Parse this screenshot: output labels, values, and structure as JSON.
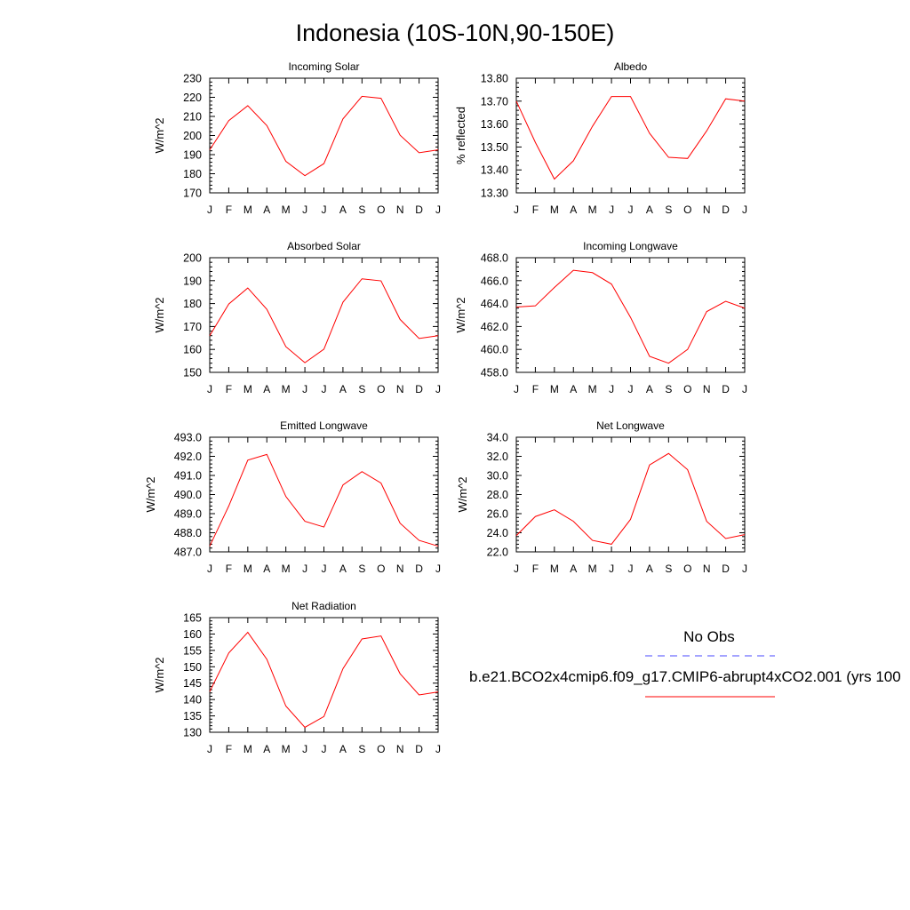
{
  "figure": {
    "title": "Indonesia (10S-10N,90-150E)"
  },
  "legend": {
    "obs_label": "No Obs",
    "obs_color": "#4a4aff",
    "model_label": "b.e21.BCO2x4cmip6.f09_g17.CMIP6-abrupt4xCO2.001 (yrs 100",
    "model_color": "#ff0000"
  },
  "chart_data": [
    {
      "type": "line",
      "title": "Incoming Solar",
      "ylabel": "W/m^2",
      "categories": [
        "J",
        "F",
        "M",
        "A",
        "M",
        "J",
        "J",
        "A",
        "S",
        "O",
        "N",
        "D",
        "J"
      ],
      "ylim": [
        170,
        230
      ],
      "yticks": [
        "170",
        "180",
        "190",
        "200",
        "210",
        "220",
        "230"
      ],
      "series": [
        {
          "name": "b.e21.BCO2x4cmip6.f09_g17.CMIP6-abrupt4xCO2.001",
          "color": "#ff0000",
          "values": [
            192.5,
            207.8,
            215.6,
            205.2,
            186.5,
            179.0,
            185.3,
            208.7,
            220.5,
            219.5,
            200.2,
            191.0,
            192.5
          ]
        }
      ]
    },
    {
      "type": "line",
      "title": "Albedo",
      "ylabel": "% reflected",
      "categories": [
        "J",
        "F",
        "M",
        "A",
        "M",
        "J",
        "J",
        "A",
        "S",
        "O",
        "N",
        "D",
        "J"
      ],
      "ylim": [
        13.3,
        13.8
      ],
      "yticks": [
        "13.30",
        "13.40",
        "13.50",
        "13.60",
        "13.70",
        "13.80"
      ],
      "series": [
        {
          "name": "b.e21.BCO2x4cmip6.f09_g17.CMIP6-abrupt4xCO2.001",
          "color": "#ff0000",
          "values": [
            13.7,
            13.52,
            13.36,
            13.44,
            13.59,
            13.72,
            13.72,
            13.56,
            13.455,
            13.45,
            13.57,
            13.71,
            13.7
          ]
        }
      ]
    },
    {
      "type": "line",
      "title": "Absorbed Solar",
      "ylabel": "W/m^2",
      "categories": [
        "J",
        "F",
        "M",
        "A",
        "M",
        "J",
        "J",
        "A",
        "S",
        "O",
        "N",
        "D",
        "J"
      ],
      "ylim": [
        150,
        200
      ],
      "yticks": [
        "150",
        "160",
        "170",
        "180",
        "190",
        "200"
      ],
      "series": [
        {
          "name": "b.e21.BCO2x4cmip6.f09_g17.CMIP6-abrupt4xCO2.001",
          "color": "#ff0000",
          "values": [
            166.0,
            179.8,
            186.8,
            177.5,
            161.2,
            154.2,
            160.1,
            180.6,
            190.8,
            189.9,
            173.1,
            164.8,
            166.0
          ]
        }
      ]
    },
    {
      "type": "line",
      "title": "Incoming Longwave",
      "ylabel": "W/m^2",
      "categories": [
        "J",
        "F",
        "M",
        "A",
        "M",
        "J",
        "J",
        "A",
        "S",
        "O",
        "N",
        "D",
        "J"
      ],
      "ylim": [
        458.0,
        468.0
      ],
      "yticks": [
        "458.0",
        "460.0",
        "462.0",
        "464.0",
        "466.0",
        "468.0"
      ],
      "series": [
        {
          "name": "b.e21.BCO2x4cmip6.f09_g17.CMIP6-abrupt4xCO2.001",
          "color": "#ff0000",
          "values": [
            463.7,
            463.8,
            465.4,
            466.9,
            466.7,
            465.7,
            462.8,
            459.4,
            458.8,
            460.0,
            463.3,
            464.2,
            463.6
          ]
        }
      ]
    },
    {
      "type": "line",
      "title": "Emitted Longwave",
      "ylabel": "W/m^2",
      "categories": [
        "J",
        "F",
        "M",
        "A",
        "M",
        "J",
        "J",
        "A",
        "S",
        "O",
        "N",
        "D",
        "J"
      ],
      "ylim": [
        487.0,
        493.0
      ],
      "yticks": [
        "487.0",
        "488.0",
        "489.0",
        "490.0",
        "491.0",
        "492.0",
        "493.0"
      ],
      "series": [
        {
          "name": "b.e21.BCO2x4cmip6.f09_g17.CMIP6-abrupt4xCO2.001",
          "color": "#ff0000",
          "values": [
            487.3,
            489.4,
            491.8,
            492.1,
            489.9,
            488.6,
            488.3,
            490.5,
            491.2,
            490.6,
            488.5,
            487.6,
            487.3
          ]
        }
      ]
    },
    {
      "type": "line",
      "title": "Net Longwave",
      "ylabel": "W/m^2",
      "categories": [
        "J",
        "F",
        "M",
        "A",
        "M",
        "J",
        "J",
        "A",
        "S",
        "O",
        "N",
        "D",
        "J"
      ],
      "ylim": [
        22.0,
        34.0
      ],
      "yticks": [
        "22.0",
        "24.0",
        "26.0",
        "28.0",
        "30.0",
        "32.0",
        "34.0"
      ],
      "series": [
        {
          "name": "b.e21.BCO2x4cmip6.f09_g17.CMIP6-abrupt4xCO2.001",
          "color": "#ff0000",
          "values": [
            23.7,
            25.7,
            26.4,
            25.2,
            23.2,
            22.8,
            25.4,
            31.1,
            32.3,
            30.6,
            25.2,
            23.4,
            23.8
          ]
        }
      ]
    },
    {
      "type": "line",
      "title": "Net Radiation",
      "ylabel": "W/m^2",
      "categories": [
        "J",
        "F",
        "M",
        "A",
        "M",
        "J",
        "J",
        "A",
        "S",
        "O",
        "N",
        "D",
        "J"
      ],
      "ylim": [
        130,
        165
      ],
      "yticks": [
        "130",
        "135",
        "140",
        "145",
        "150",
        "155",
        "160",
        "165"
      ],
      "series": [
        {
          "name": "b.e21.BCO2x4cmip6.f09_g17.CMIP6-abrupt4xCO2.001",
          "color": "#ff0000",
          "values": [
            142.4,
            154.2,
            160.5,
            152.3,
            138.0,
            131.5,
            134.8,
            149.4,
            158.5,
            159.4,
            147.9,
            141.4,
            142.3
          ]
        }
      ]
    }
  ]
}
